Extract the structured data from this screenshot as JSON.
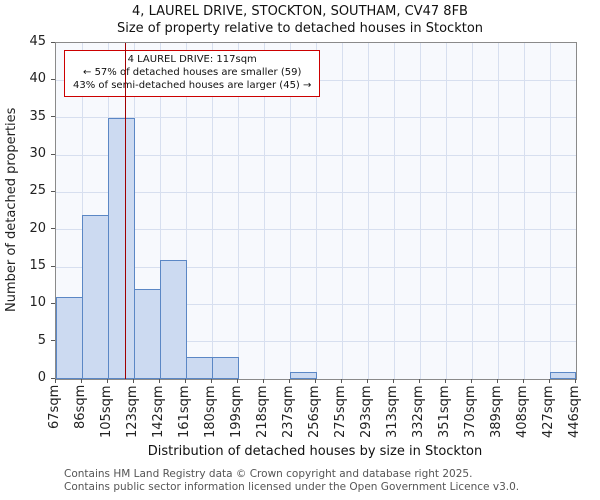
{
  "chart_data": {
    "type": "bar",
    "title": "4, LAUREL DRIVE, STOCKTON, SOUTHAM, CV47 8FB",
    "subtitle": "Size of property relative to detached houses in Stockton",
    "xlabel": "Distribution of detached houses by size in Stockton",
    "ylabel": "Number of detached properties",
    "ylim": [
      0,
      45
    ],
    "ytick_step": 5,
    "grid": true,
    "categories": [
      "67sqm",
      "86sqm",
      "105sqm",
      "123sqm",
      "142sqm",
      "161sqm",
      "180sqm",
      "199sqm",
      "218sqm",
      "237sqm",
      "256sqm",
      "275sqm",
      "293sqm",
      "313sqm",
      "332sqm",
      "351sqm",
      "370sqm",
      "389sqm",
      "408sqm",
      "427sqm",
      "446sqm"
    ],
    "bin_edges_sqm": [
      67,
      86,
      105,
      123,
      142,
      161,
      180,
      199,
      218,
      237,
      256,
      275,
      293,
      313,
      332,
      351,
      370,
      389,
      408,
      427,
      446
    ],
    "values": [
      11,
      22,
      35,
      12,
      16,
      3,
      3,
      0,
      0,
      1,
      0,
      0,
      0,
      0,
      0,
      0,
      0,
      0,
      0,
      1
    ],
    "marker": {
      "value_sqm": 117,
      "color": "#a00000"
    },
    "annotation": {
      "line1": "4 LAUREL DRIVE: 117sqm",
      "line2": "← 57% of detached houses are smaller (59)",
      "line3": "43% of semi-detached houses are larger (45) →"
    },
    "colors": {
      "bar_fill": "#ccdaf1",
      "bar_border": "#5b87c5",
      "grid": "#d7dfef",
      "marker_line": "#a00000",
      "annotation_border": "#cc0000"
    }
  },
  "footer": {
    "line1": "Contains HM Land Registry data © Crown copyright and database right 2025.",
    "line2": "Contains public sector information licensed under the Open Government Licence v3.0."
  }
}
